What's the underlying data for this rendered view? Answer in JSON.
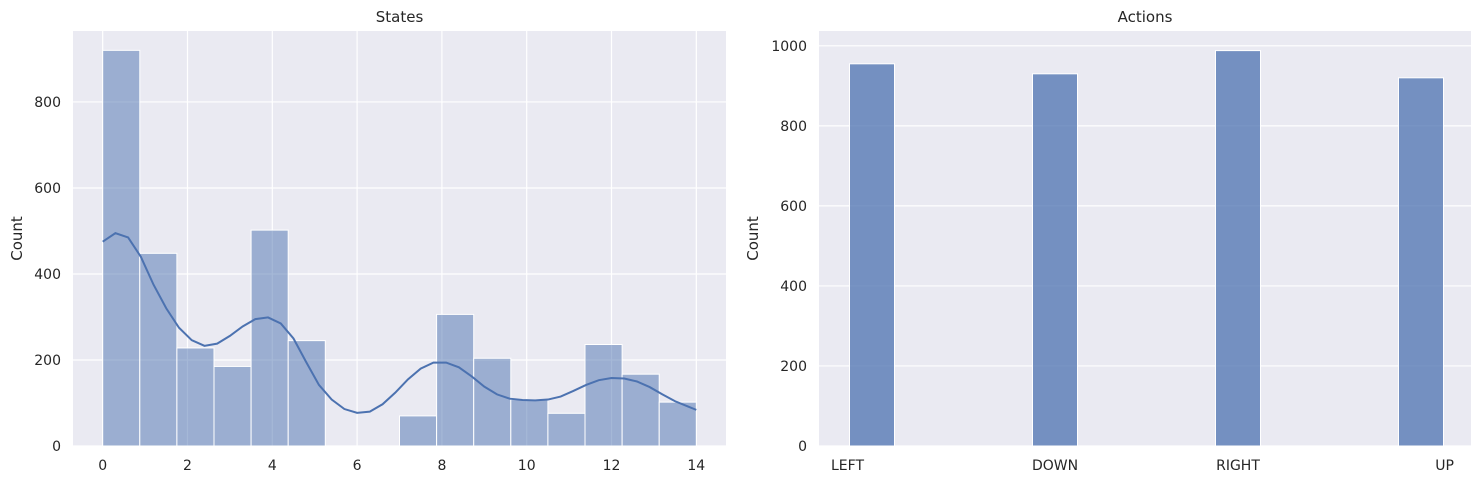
{
  "chart_data": [
    {
      "type": "bar",
      "subtype": "histogram",
      "title": "States",
      "xlabel": "",
      "ylabel": "Count",
      "xlim": [
        -0.7,
        14.7
      ],
      "ylim": [
        0,
        965
      ],
      "xticks": [
        0,
        2,
        4,
        6,
        8,
        10,
        12,
        14
      ],
      "yticks": [
        0,
        200,
        400,
        600,
        800
      ],
      "bin_width": 0.875,
      "bins": [
        {
          "start": 0.0,
          "end": 0.875,
          "count": 920
        },
        {
          "start": 0.875,
          "end": 1.75,
          "count": 448
        },
        {
          "start": 1.75,
          "end": 2.625,
          "count": 228
        },
        {
          "start": 2.625,
          "end": 3.5,
          "count": 185
        },
        {
          "start": 3.5,
          "end": 4.375,
          "count": 502
        },
        {
          "start": 4.375,
          "end": 5.25,
          "count": 245
        },
        {
          "start": 5.25,
          "end": 6.125,
          "count": 0
        },
        {
          "start": 6.125,
          "end": 7.0,
          "count": 0
        },
        {
          "start": 7.0,
          "end": 7.875,
          "count": 70
        },
        {
          "start": 7.875,
          "end": 8.75,
          "count": 306
        },
        {
          "start": 8.75,
          "end": 9.625,
          "count": 204
        },
        {
          "start": 9.625,
          "end": 10.5,
          "count": 108
        },
        {
          "start": 10.5,
          "end": 11.375,
          "count": 76
        },
        {
          "start": 11.375,
          "end": 12.25,
          "count": 236
        },
        {
          "start": 12.25,
          "end": 13.125,
          "count": 167
        },
        {
          "start": 13.125,
          "end": 14.0,
          "count": 102
        }
      ],
      "kde": {
        "x": [
          0,
          0.3,
          0.6,
          0.9,
          1.2,
          1.5,
          1.8,
          2.1,
          2.4,
          2.7,
          3.0,
          3.3,
          3.6,
          3.9,
          4.2,
          4.5,
          4.8,
          5.1,
          5.4,
          5.7,
          6.0,
          6.3,
          6.6,
          6.9,
          7.2,
          7.5,
          7.8,
          8.1,
          8.4,
          8.7,
          9.0,
          9.3,
          9.6,
          9.9,
          10.2,
          10.5,
          10.8,
          11.1,
          11.4,
          11.7,
          12.0,
          12.3,
          12.6,
          12.9,
          13.2,
          13.5,
          13.8,
          14.0
        ],
        "y": [
          475,
          495,
          485,
          440,
          375,
          320,
          275,
          246,
          233,
          238,
          256,
          278,
          295,
          299,
          285,
          250,
          195,
          142,
          108,
          86,
          77,
          80,
          97,
          124,
          155,
          180,
          194,
          194,
          183,
          162,
          138,
          120,
          110,
          107,
          106,
          108,
          115,
          128,
          142,
          153,
          158,
          157,
          150,
          137,
          120,
          104,
          92,
          84
        ]
      },
      "color": "#4c72b0"
    },
    {
      "type": "bar",
      "title": "Actions",
      "xlabel": "",
      "ylabel": "Count",
      "categories": [
        "LEFT",
        "DOWN",
        "RIGHT",
        "UP"
      ],
      "values": [
        955,
        930,
        988,
        920
      ],
      "ylim": [
        0,
        1037
      ],
      "yticks": [
        0,
        200,
        400,
        600,
        800,
        1000
      ],
      "color": "#4c72b0"
    }
  ]
}
